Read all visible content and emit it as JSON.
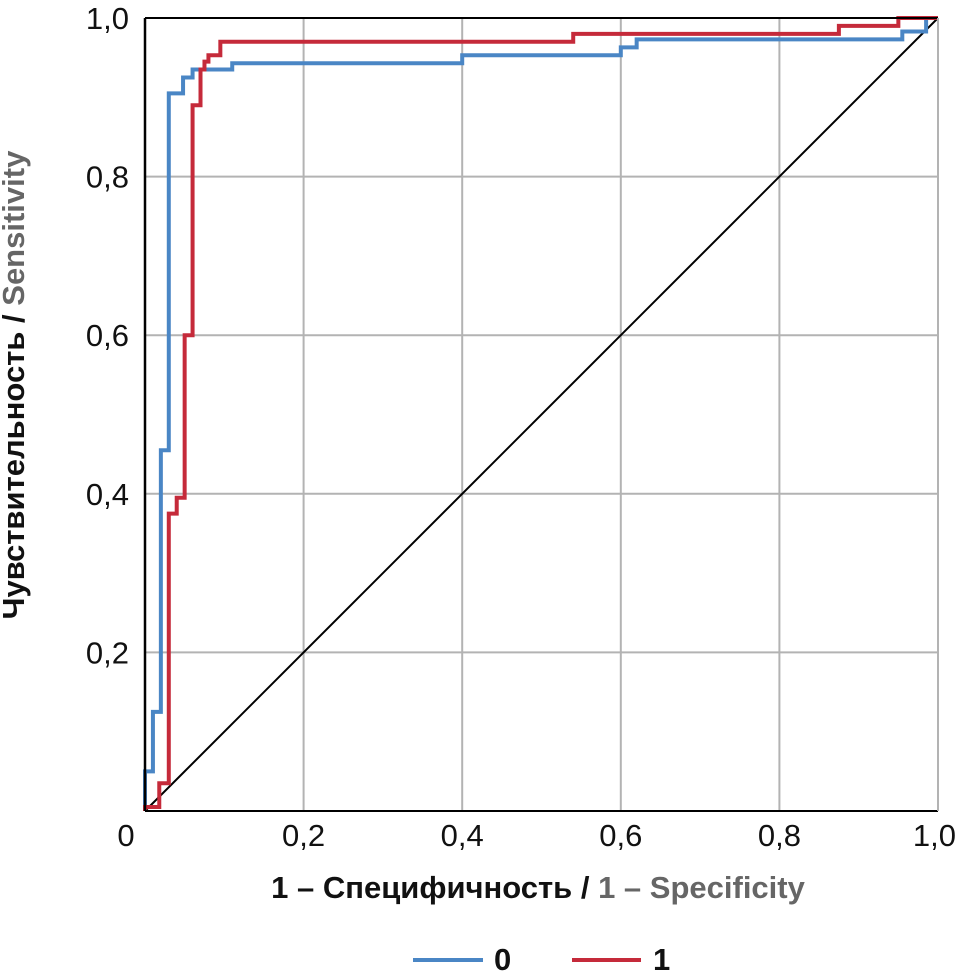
{
  "chart_data": {
    "type": "line",
    "title": "",
    "xlabel": {
      "main": "1 – Специфичность",
      "separator": " / ",
      "secondary": "1 – Specificity"
    },
    "ylabel": {
      "main": "Чувствительность",
      "separator": " / ",
      "secondary": "Sensitivity"
    },
    "xlim": [
      0,
      1
    ],
    "ylim": [
      0,
      1
    ],
    "x_tick_labels": [
      "0",
      "0,2",
      "0,4",
      "0,6",
      "0,8",
      "1,0"
    ],
    "y_tick_labels": [
      "0,2",
      "0,4",
      "0,6",
      "0,8",
      "1,0"
    ],
    "grid": true,
    "legend_position": "bottom",
    "series": [
      {
        "name": "0",
        "color": "#4a86c5",
        "points": [
          [
            0.0,
            0.0
          ],
          [
            0.0,
            0.05
          ],
          [
            0.01,
            0.05
          ],
          [
            0.01,
            0.125
          ],
          [
            0.02,
            0.125
          ],
          [
            0.02,
            0.455
          ],
          [
            0.03,
            0.455
          ],
          [
            0.03,
            0.905
          ],
          [
            0.048,
            0.905
          ],
          [
            0.048,
            0.925
          ],
          [
            0.06,
            0.925
          ],
          [
            0.06,
            0.935
          ],
          [
            0.11,
            0.935
          ],
          [
            0.11,
            0.943
          ],
          [
            0.4,
            0.943
          ],
          [
            0.4,
            0.953
          ],
          [
            0.6,
            0.953
          ],
          [
            0.6,
            0.963
          ],
          [
            0.62,
            0.963
          ],
          [
            0.62,
            0.973
          ],
          [
            0.955,
            0.973
          ],
          [
            0.955,
            0.983
          ],
          [
            0.985,
            0.983
          ],
          [
            0.985,
            1.0
          ],
          [
            1.0,
            1.0
          ]
        ]
      },
      {
        "name": "1",
        "color": "#c52a3a",
        "points": [
          [
            0.0,
            0.0
          ],
          [
            0.0,
            0.005
          ],
          [
            0.018,
            0.005
          ],
          [
            0.018,
            0.035
          ],
          [
            0.03,
            0.035
          ],
          [
            0.03,
            0.375
          ],
          [
            0.04,
            0.375
          ],
          [
            0.04,
            0.395
          ],
          [
            0.05,
            0.395
          ],
          [
            0.05,
            0.6
          ],
          [
            0.06,
            0.6
          ],
          [
            0.06,
            0.89
          ],
          [
            0.07,
            0.89
          ],
          [
            0.07,
            0.935
          ],
          [
            0.075,
            0.935
          ],
          [
            0.075,
            0.945
          ],
          [
            0.08,
            0.945
          ],
          [
            0.08,
            0.953
          ],
          [
            0.095,
            0.953
          ],
          [
            0.095,
            0.97
          ],
          [
            0.54,
            0.97
          ],
          [
            0.54,
            0.98
          ],
          [
            0.875,
            0.98
          ],
          [
            0.875,
            0.99
          ],
          [
            0.95,
            0.99
          ],
          [
            0.95,
            1.0
          ],
          [
            1.0,
            1.0
          ]
        ]
      }
    ],
    "reference_line": {
      "color": "#000000",
      "points": [
        [
          0,
          0
        ],
        [
          1,
          1
        ]
      ]
    },
    "colors": {
      "grid": "#b3b3b3",
      "axis": "#000000",
      "text": "#111111",
      "secondary_title": "#666666"
    }
  }
}
